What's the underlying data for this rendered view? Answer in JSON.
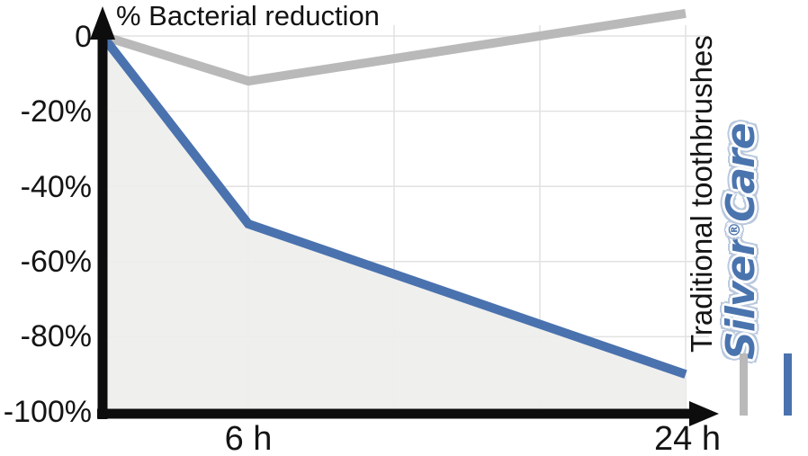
{
  "title": "% Bacterial reduction",
  "y_axis": {
    "tick_labels": [
      "0",
      "-20%",
      "-40%",
      "-60%",
      "-80%",
      "-100%"
    ]
  },
  "x_axis": {
    "tick_labels": [
      "6 h",
      "24 h"
    ]
  },
  "legend": {
    "items": [
      {
        "label": "Traditional toothbrushes",
        "color": "#b9b9b9"
      },
      {
        "label": "SilverCare",
        "color": "#4a72ae"
      }
    ],
    "logo": {
      "part1": "Silver",
      "reg": "®",
      "part2": "Care"
    }
  },
  "colors": {
    "traditional_line": "#b9b9b9",
    "silvercare_line": "#4a72ae",
    "area_fill": "rgba(238,238,235,0.92)",
    "gridline": "#e2e2e2",
    "axis": "#0d0d0d"
  },
  "chart_data": {
    "type": "line",
    "title": "% Bacterial reduction",
    "x": [
      0,
      6,
      24
    ],
    "x_unit": "hours",
    "x_ticks": [
      6,
      24
    ],
    "x_tick_labels": [
      "6 h",
      "24 h"
    ],
    "x_gridlines": [
      6,
      12,
      18,
      24
    ],
    "y_ticks": [
      0,
      -20,
      -40,
      -60,
      -80,
      -100
    ],
    "ylim": [
      -100,
      8
    ],
    "xlim": [
      0,
      25
    ],
    "grid": true,
    "legend_position": "right-rotated",
    "series": [
      {
        "name": "Traditional toothbrushes",
        "color": "#b9b9b9",
        "values": [
          0,
          -12,
          6
        ],
        "area_fill": false
      },
      {
        "name": "SilverCare",
        "color": "#4a72ae",
        "values": [
          0,
          -50,
          -90
        ],
        "area_fill": true
      }
    ]
  }
}
